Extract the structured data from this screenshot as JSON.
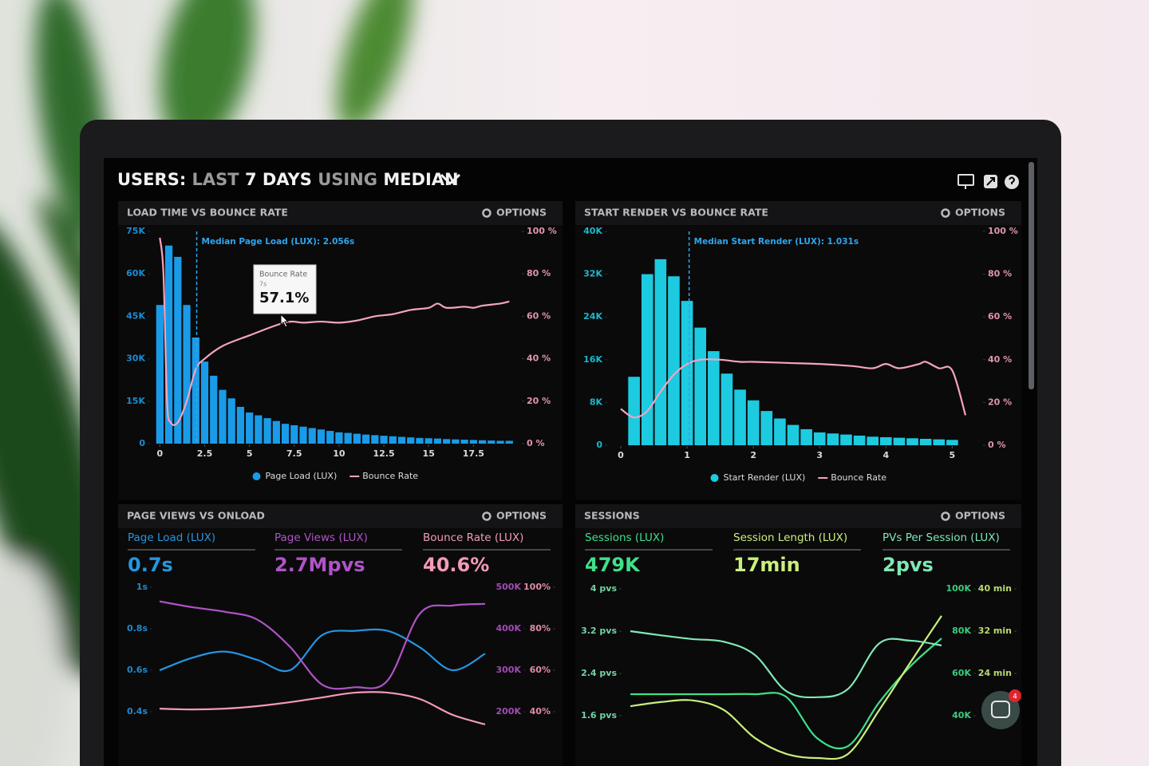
{
  "header": {
    "title_lead": "USERS:",
    "title_range_a": "LAST",
    "title_range_b": "7 DAYS",
    "title_using": "USING",
    "title_mode": "MEDIAN"
  },
  "widget": {
    "badge": "4"
  },
  "chart_data": [
    {
      "type": "histogram_line",
      "title": "LOAD TIME VS BOUNCE RATE",
      "options": "OPTIONS",
      "annotation": "Median Page Load (LUX): 2.056s",
      "median": 2.056,
      "tooltip": {
        "title": "Bounce Rate",
        "subtitle": "7s",
        "text": "57.1%"
      },
      "bins": [
        -0.25,
        0.25,
        0.75,
        1.25,
        1.75,
        2.25,
        2.75,
        3.25,
        3.75,
        4.25,
        4.75,
        5.25,
        5.75,
        6.25,
        6.75,
        7.25,
        7.75,
        8.25,
        8.75,
        9.25,
        9.75,
        10.25,
        10.75,
        11.25,
        11.75,
        12.25,
        12.75,
        13.25,
        13.75,
        14.25,
        14.75,
        15.25,
        15.75,
        16.25,
        16.75,
        17.25,
        17.75,
        18.25,
        18.75,
        19.25,
        19.75
      ],
      "series": [
        {
          "name": "Page Load (LUX)",
          "color": "#1a9be8",
          "values": [
            49000,
            70000,
            66000,
            49000,
            37500,
            29000,
            24000,
            19000,
            16000,
            13000,
            11000,
            10000,
            9000,
            8000,
            7000,
            6500,
            6000,
            5500,
            5000,
            4500,
            4000,
            3800,
            3500,
            3200,
            3000,
            2800,
            2600,
            2400,
            2200,
            2000,
            1900,
            1800,
            1600,
            1500,
            1400,
            1300,
            1200,
            1100,
            1000,
            1000
          ]
        },
        {
          "name": "Bounce Rate",
          "color": "#f5a3c1",
          "axis": "y2",
          "x": [
            0,
            0.2,
            0.4,
            0.6,
            1,
            1.5,
            2,
            2.5,
            3.5,
            5,
            7,
            8,
            9,
            10,
            11,
            12,
            13,
            14,
            15,
            15.5,
            16,
            17,
            17.5,
            18,
            19,
            19.5
          ],
          "values": [
            97,
            80,
            20,
            10,
            10,
            20,
            35,
            40,
            46,
            51,
            57.1,
            57,
            57.5,
            57,
            58,
            60,
            61,
            63,
            64,
            66,
            64,
            64.5,
            64,
            65,
            66,
            67
          ]
        }
      ],
      "xlim": [
        -0.15,
        19.8
      ],
      "xticks": [
        0,
        2.5,
        5,
        7.5,
        10,
        12.5,
        15,
        17.5
      ],
      "ylim": [
        0,
        75000
      ],
      "yticks": [
        0,
        {
          "value": 15000,
          "label": "15K"
        },
        {
          "value": 30000,
          "label": "30K"
        },
        {
          "value": 45000,
          "label": "45K"
        },
        {
          "value": 60000,
          "label": "60K"
        },
        {
          "value": 75000,
          "label": "75K"
        }
      ],
      "y2lim": [
        0,
        100
      ],
      "y2ticks": [
        {
          "value": 0,
          "label": "0 %"
        },
        {
          "value": 20,
          "label": "20 %"
        },
        {
          "value": 40,
          "label": "40 %"
        },
        {
          "value": 60,
          "label": "60 %"
        },
        {
          "value": 80,
          "label": "80 %"
        },
        {
          "value": 100,
          "label": "100 %"
        }
      ]
    },
    {
      "type": "histogram_line",
      "title": "START RENDER VS BOUNCE RATE",
      "options": "OPTIONS",
      "annotation": "Median Start Render (LUX): 1.031s",
      "median": 1.031,
      "bins": [
        0.1,
        0.3,
        0.5,
        0.7,
        0.9,
        1.1,
        1.3,
        1.5,
        1.7,
        1.9,
        2.1,
        2.3,
        2.5,
        2.7,
        2.9,
        3.1,
        3.3,
        3.5,
        3.7,
        3.9,
        4.1,
        4.3,
        4.5,
        4.7,
        4.9,
        5.1
      ],
      "series": [
        {
          "name": "Start Render (LUX)",
          "color": "#1ccbe0",
          "values": [
            12800,
            32000,
            34800,
            31600,
            27000,
            22000,
            17600,
            13400,
            10400,
            8400,
            6400,
            5000,
            3800,
            3000,
            2400,
            2200,
            2000,
            1800,
            1600,
            1500,
            1400,
            1300,
            1200,
            1100,
            1000
          ]
        },
        {
          "name": "Bounce Rate",
          "color": "#f5a3c1",
          "axis": "y2",
          "x": [
            0,
            0.2,
            0.4,
            0.6,
            0.8,
            1,
            1.2,
            1.5,
            1.8,
            2,
            2.5,
            3,
            3.5,
            3.8,
            4,
            4.2,
            4.5,
            4.6,
            4.8,
            5,
            5.2
          ],
          "values": [
            17,
            13,
            16,
            25,
            33,
            38,
            40,
            40,
            39,
            39,
            38.5,
            38,
            37,
            36,
            38,
            36,
            38,
            39,
            36,
            35,
            14
          ]
        }
      ],
      "xlim": [
        0,
        5.2
      ],
      "xticks": [
        0,
        1,
        2,
        3,
        4,
        5
      ],
      "ylim": [
        0,
        40000
      ],
      "yticks": [
        0,
        {
          "value": 8000,
          "label": "8K"
        },
        {
          "value": 16000,
          "label": "16K"
        },
        {
          "value": 24000,
          "label": "24K"
        },
        {
          "value": 32000,
          "label": "32K"
        },
        {
          "value": 40000,
          "label": "40K"
        }
      ],
      "y2lim": [
        0,
        100
      ],
      "y2ticks": [
        {
          "value": 0,
          "label": "0 %"
        },
        {
          "value": 20,
          "label": "20 %"
        },
        {
          "value": 40,
          "label": "40 %"
        },
        {
          "value": 60,
          "label": "60 %"
        },
        {
          "value": 80,
          "label": "80 %"
        },
        {
          "value": 100,
          "label": "100 %"
        }
      ]
    },
    {
      "type": "line",
      "title": "PAGE VIEWS VS ONLOAD",
      "options": "OPTIONS",
      "stats": [
        {
          "label": "Page Load (LUX)",
          "value": "0.7s"
        },
        {
          "label": "Page Views (LUX)",
          "value": "2.7Mpvs"
        },
        {
          "label": "Bounce Rate (LUX)",
          "value": "40.6%"
        }
      ],
      "categories": [
        null,
        null,
        null,
        null,
        null,
        null,
        null,
        null,
        null,
        null,
        null
      ],
      "series": [
        {
          "name": "Page Load (LUX)",
          "color": "#2596e0",
          "values": [
            0.6,
            0.66,
            0.69,
            0.65,
            0.6,
            0.77,
            0.79,
            0.79,
            0.71,
            0.6,
            0.68
          ]
        },
        {
          "name": "Page Views (LUX)",
          "color": "#b053c6",
          "axis": "y2",
          "values": [
            466000,
            452000,
            441000,
            422000,
            357000,
            265000,
            259000,
            275000,
            437000,
            456000,
            460000
          ]
        },
        {
          "name": "Bounce Rate (LUX)",
          "color": "#f49ab8",
          "axis": "y3",
          "values": [
            41.5,
            41.1,
            41.5,
            42.7,
            44.6,
            46.9,
            49.2,
            49.2,
            46.1,
            38.5,
            33.9
          ]
        }
      ],
      "ylim": [
        0.4,
        1
      ],
      "yticks": [
        {
          "value": 0.4,
          "label": "0.4s"
        },
        {
          "value": 0.6,
          "label": "0.6s"
        },
        {
          "value": 0.8,
          "label": "0.8s"
        },
        {
          "value": 1,
          "label": "1s"
        }
      ],
      "y2lim": [
        200000,
        500000
      ],
      "y2ticks": [
        {
          "value": 200000,
          "label": "200K"
        },
        {
          "value": 300000,
          "label": "300K"
        },
        {
          "value": 400000,
          "label": "400K"
        },
        {
          "value": 500000,
          "label": "500K"
        }
      ],
      "y3lim": [
        40,
        100
      ],
      "y3ticks": [
        {
          "value": 40,
          "label": "40%"
        },
        {
          "value": 60,
          "label": "60%"
        },
        {
          "value": 80,
          "label": "80%"
        },
        {
          "value": 100,
          "label": "100%"
        }
      ]
    },
    {
      "type": "line",
      "title": "SESSIONS",
      "options": "OPTIONS",
      "stats": [
        {
          "label": "Sessions (LUX)",
          "value": "479K"
        },
        {
          "label": "Session Length (LUX)",
          "value": "17min"
        },
        {
          "label": "PVs Per Session (LUX)",
          "value": "2pvs"
        }
      ],
      "categories": [
        null,
        null,
        null,
        null,
        null,
        null,
        null,
        null,
        null,
        null,
        null
      ],
      "series": [
        {
          "name": "Sessions (LUX)",
          "color": "#3fe08a",
          "axis": "y2",
          "values": [
            50200,
            50200,
            50200,
            50200,
            50200,
            49000,
            29400,
            25700,
            46400,
            63400,
            76600
          ]
        },
        {
          "name": "Session Length (LUX)",
          "color": "#c9f07c",
          "axis": "y3",
          "values": [
            17.8,
            18.6,
            18.9,
            17.1,
            11.8,
            8.8,
            8.0,
            8.8,
            17.1,
            26.1,
            34.9
          ]
        },
        {
          "name": "PVs Per Session (LUX)",
          "color": "#7fe8b4",
          "values": [
            3.2,
            3.12,
            3.05,
            3.0,
            2.75,
            2.07,
            1.95,
            2.11,
            2.97,
            3.02,
            2.93
          ]
        }
      ],
      "ylim": [
        1.6,
        4
      ],
      "yticks": [
        {
          "value": 1.6,
          "label": "1.6 pvs"
        },
        {
          "value": 2.4,
          "label": "2.4 pvs"
        },
        {
          "value": 3.2,
          "label": "3.2 pvs"
        },
        {
          "value": 4,
          "label": "4 pvs"
        }
      ],
      "y2lim": [
        40000,
        100000
      ],
      "y2ticks": [
        {
          "value": 40000,
          "label": "40K"
        },
        {
          "value": 60000,
          "label": "60K"
        },
        {
          "value": 80000,
          "label": "80K"
        },
        {
          "value": 100000,
          "label": "100K"
        }
      ],
      "y3lim": [
        16,
        40
      ],
      "y3ticks": [
        {
          "value": 24,
          "label": "24 min"
        },
        {
          "value": 32,
          "label": "32 min"
        },
        {
          "value": 40,
          "label": "40 min"
        }
      ]
    }
  ]
}
